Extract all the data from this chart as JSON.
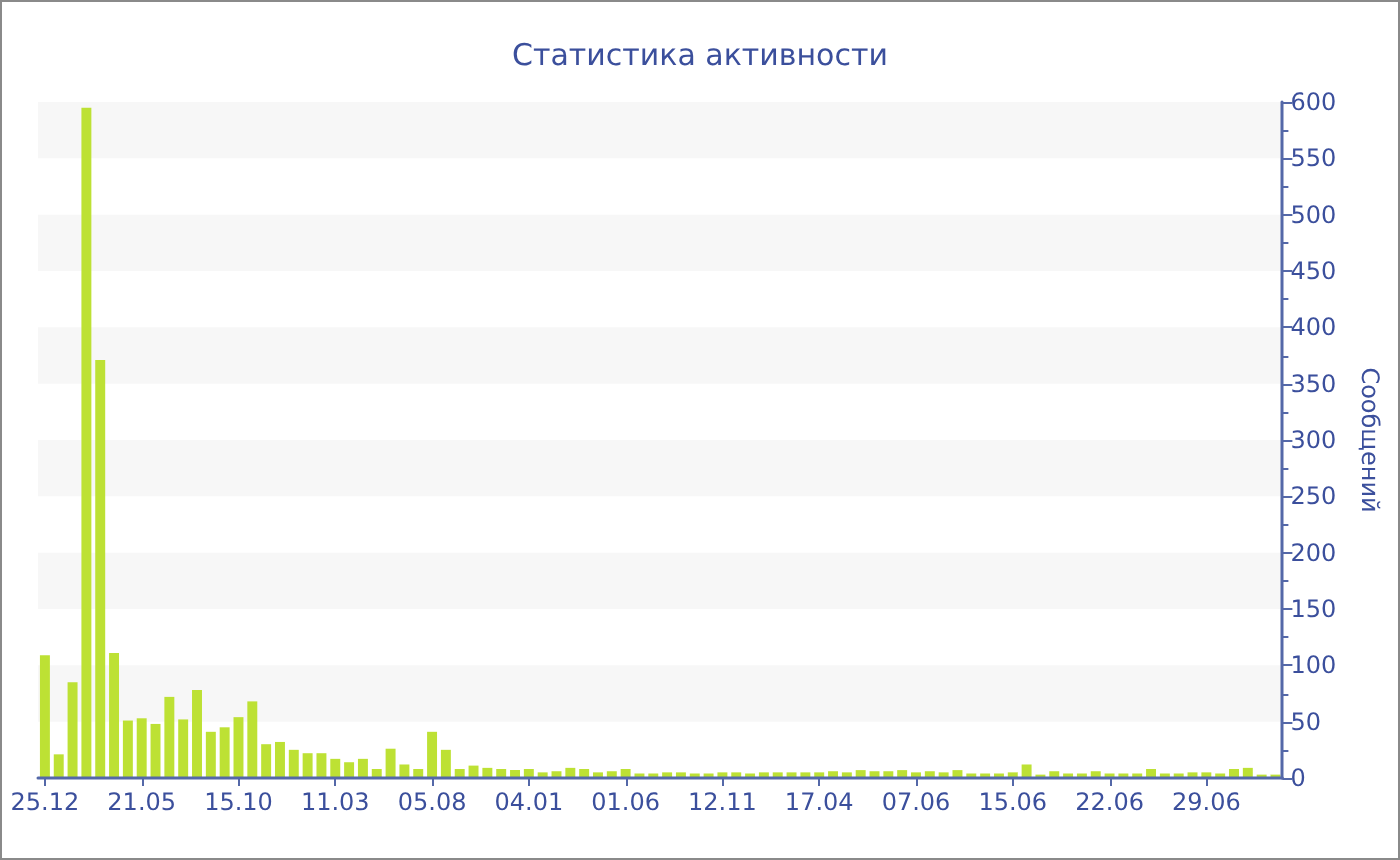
{
  "chart_data": {
    "type": "bar",
    "title": "Статистика активности",
    "ylabel": "Сообщений",
    "categories": [
      "25.12",
      null,
      null,
      null,
      null,
      null,
      null,
      "21.05",
      null,
      null,
      null,
      null,
      null,
      null,
      "15.10",
      null,
      null,
      null,
      null,
      null,
      null,
      "11.03",
      null,
      null,
      null,
      null,
      null,
      null,
      "05.08",
      null,
      null,
      null,
      null,
      null,
      null,
      "04.01",
      null,
      null,
      null,
      null,
      null,
      null,
      "01.06",
      null,
      null,
      null,
      null,
      null,
      null,
      "12.11",
      null,
      null,
      null,
      null,
      null,
      null,
      "17.04",
      null,
      null,
      null,
      null,
      null,
      null,
      "07.06",
      null,
      null,
      null,
      null,
      null,
      null,
      "15.06",
      null,
      null,
      null,
      null,
      null,
      null,
      "22.06",
      null,
      null,
      null,
      null,
      null,
      null,
      "29.06",
      null,
      null,
      null,
      null,
      null
    ],
    "values": [
      109,
      21,
      85,
      595,
      371,
      111,
      51,
      53,
      48,
      72,
      52,
      78,
      41,
      45,
      54,
      68,
      30,
      32,
      25,
      22,
      22,
      17,
      14,
      17,
      8,
      26,
      12,
      8,
      41,
      25,
      8,
      11,
      9,
      8,
      7,
      8,
      5,
      6,
      9,
      8,
      5,
      6,
      8,
      4,
      4,
      5,
      5,
      4,
      4,
      5,
      5,
      4,
      5,
      5,
      5,
      5,
      5,
      6,
      5,
      7,
      6,
      6,
      7,
      5,
      6,
      5,
      7,
      4,
      4,
      4,
      5,
      12,
      3,
      6,
      4,
      4,
      6,
      4,
      4,
      4,
      8,
      4,
      4,
      5,
      5,
      4,
      8,
      9,
      3,
      3
    ],
    "color": "#bde134",
    "ylim": [
      0,
      600
    ],
    "yticks": [
      0,
      50,
      100,
      150,
      200,
      250,
      300,
      350,
      400,
      450,
      500,
      550,
      600
    ],
    "bands": [
      {
        "axis": "y",
        "from": 50,
        "to": 100,
        "color": "#f7f7f7"
      },
      {
        "axis": "y",
        "from": 150,
        "to": 200,
        "color": "#f7f7f7"
      },
      {
        "axis": "y",
        "from": 250,
        "to": 300,
        "color": "#f7f7f7"
      },
      {
        "axis": "y",
        "from": 350,
        "to": 400,
        "color": "#f7f7f7"
      },
      {
        "axis": "y",
        "from": 450,
        "to": 500,
        "color": "#f7f7f7"
      },
      {
        "axis": "y",
        "from": 550,
        "to": 600,
        "color": "#f7f7f7"
      }
    ]
  }
}
